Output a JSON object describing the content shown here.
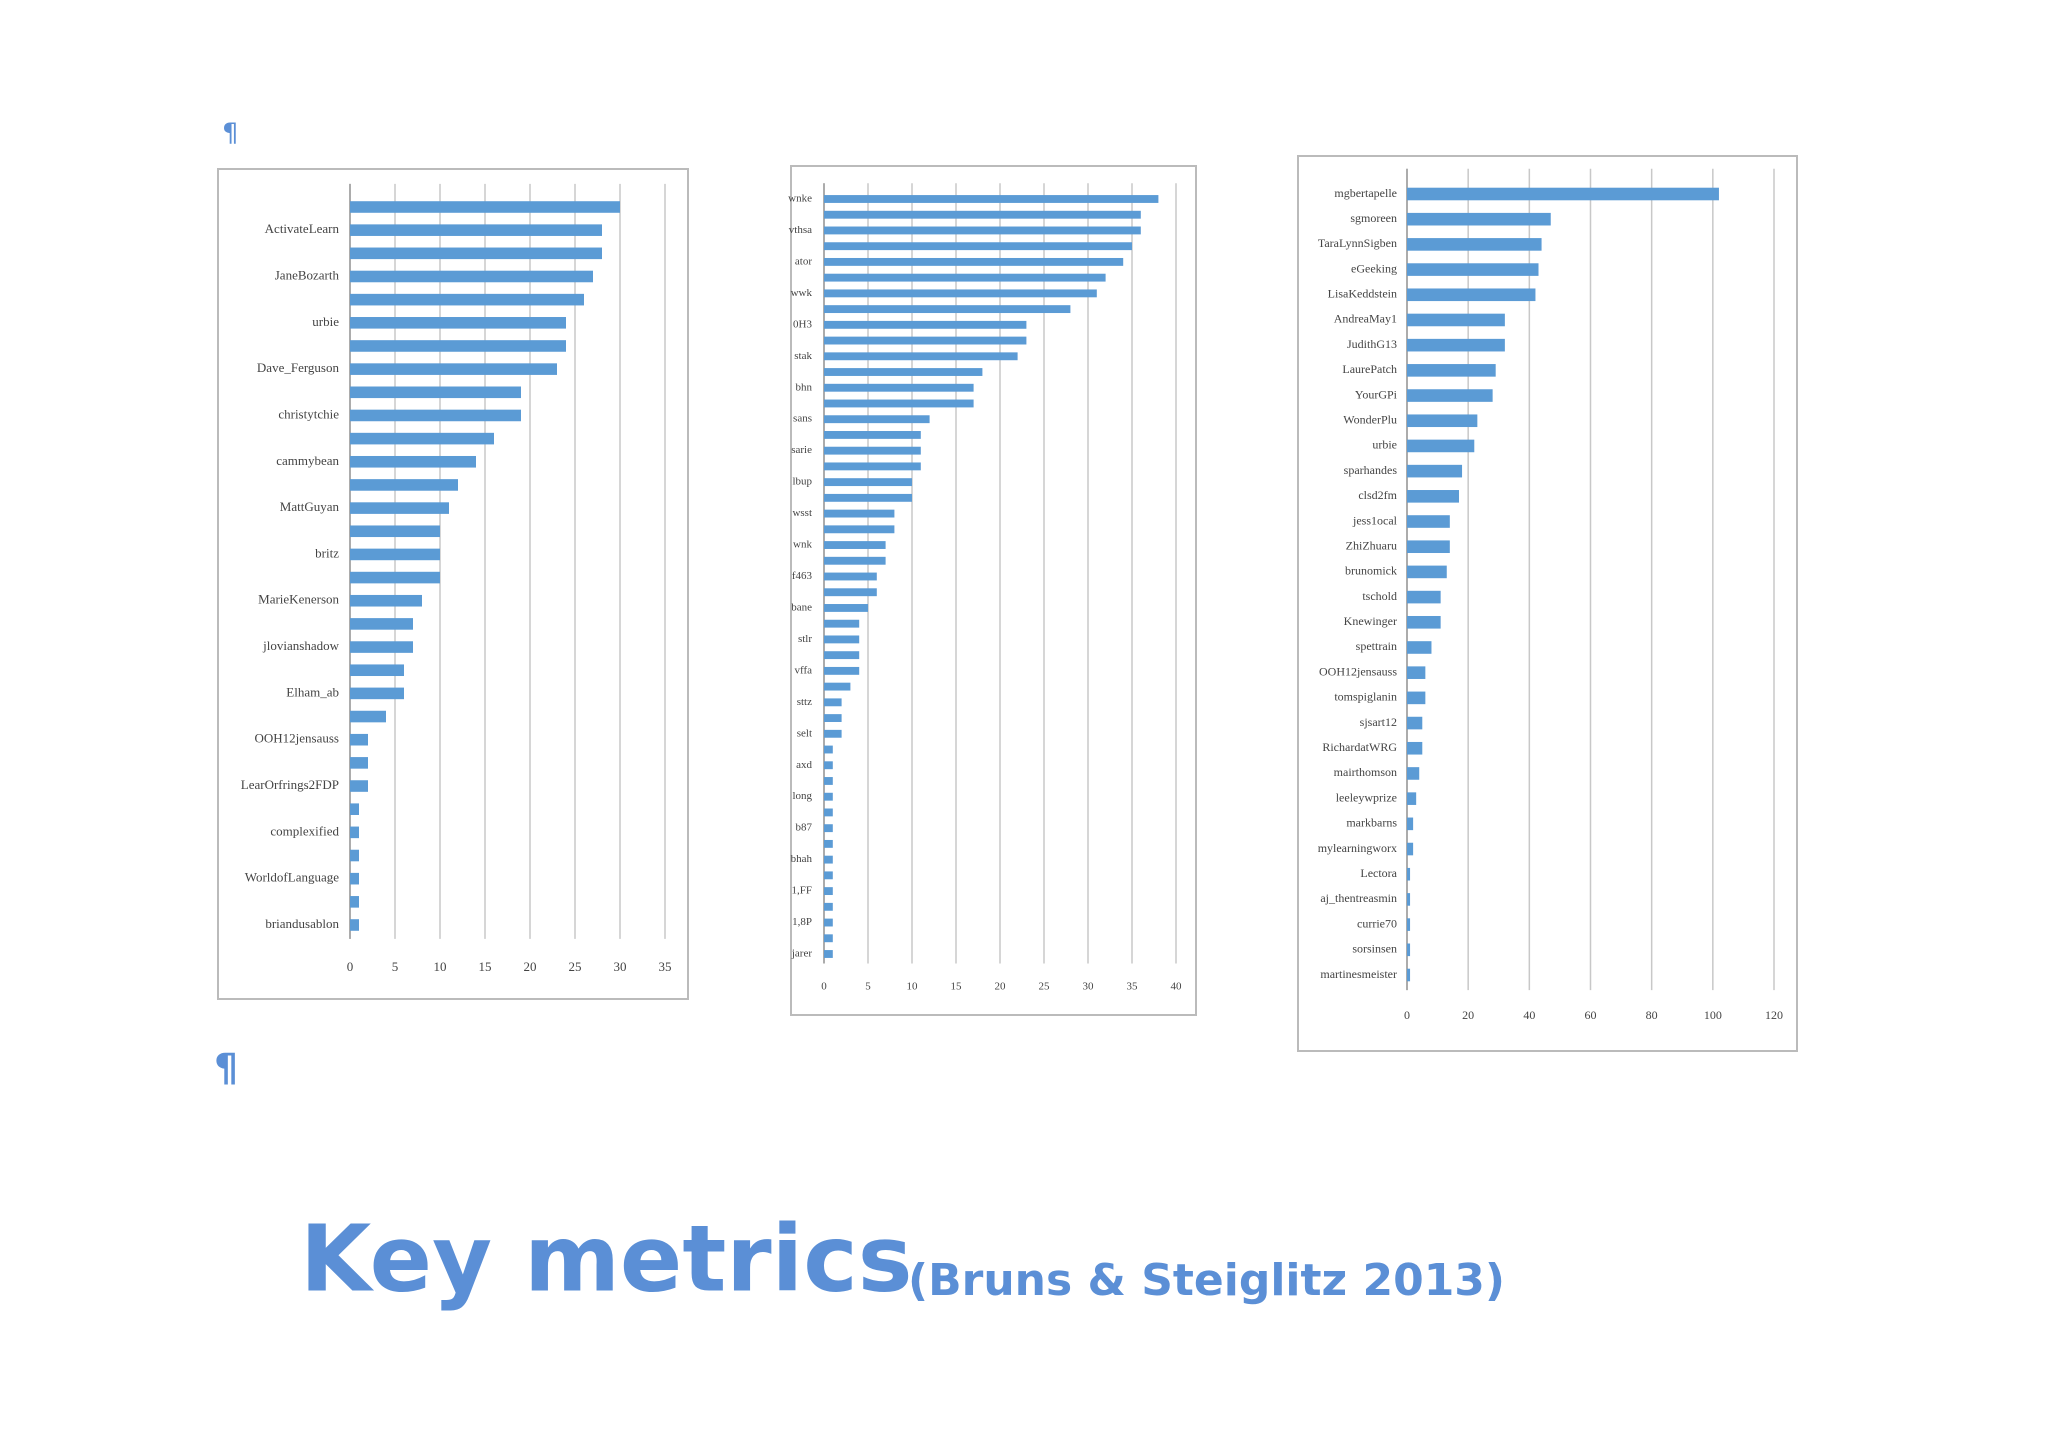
{
  "marks": [
    "¶",
    "¶"
  ],
  "heading": {
    "title": "Key metrics",
    "citation": "(Bruns & Steiglitz 2013)"
  },
  "chart_data": [
    {
      "type": "bar",
      "orientation": "horizontal",
      "color": "#5b9bd5",
      "grid": true,
      "categories": [
        null,
        "ActivateLearn",
        null,
        "JaneBozarth",
        null,
        "urbie",
        null,
        "Dave_Ferguson",
        null,
        "christytchie",
        null,
        "cammybean",
        null,
        "MattGuyan",
        null,
        "britz",
        null,
        "MarieKenerson",
        null,
        "jlovianshadow",
        null,
        "Elham_ab",
        null,
        "OOH12jensauss",
        null,
        "LearOrfrings2FDP",
        null,
        "complexified",
        null,
        "WorldofLanguage",
        null,
        "briandusablon"
      ],
      "values": [
        30,
        28,
        28,
        27,
        26,
        24,
        24,
        23,
        19,
        19,
        16,
        14,
        12,
        11,
        10,
        10,
        10,
        8,
        7,
        7,
        6,
        6,
        4,
        2,
        2,
        2,
        1,
        1,
        1,
        1,
        1,
        1
      ],
      "xlim": [
        0,
        35
      ],
      "xticks": [
        0,
        5,
        10,
        15,
        20,
        25,
        30,
        35
      ]
    },
    {
      "type": "bar",
      "orientation": "horizontal",
      "color": "#5b9bd5",
      "grid": true,
      "categories": [
        "wnke",
        null,
        "vthsa",
        null,
        "ator",
        null,
        "wwk",
        null,
        "0H3",
        null,
        "stak",
        null,
        "bhn",
        null,
        "sans",
        null,
        "sarie",
        null,
        "lbup",
        null,
        "wsst",
        null,
        "wnk",
        null,
        "f463",
        null,
        "bane",
        null,
        "stlr",
        null,
        "vffa",
        null,
        "sttz",
        null,
        "selt",
        null,
        "axd",
        null,
        "long",
        null,
        "b87",
        null,
        "bhah",
        null,
        "1,FF",
        null,
        "1,8P",
        null,
        "jarer"
      ],
      "values": [
        38,
        36,
        36,
        35,
        34,
        32,
        31,
        28,
        23,
        23,
        22,
        18,
        17,
        17,
        12,
        11,
        11,
        11,
        10,
        10,
        8,
        8,
        7,
        7,
        6,
        6,
        5,
        4,
        4,
        4,
        4,
        3,
        2,
        2,
        2,
        1,
        1,
        1,
        1,
        1,
        1,
        1,
        1,
        1,
        1,
        1,
        1,
        1,
        1
      ],
      "xlim": [
        0,
        40
      ],
      "xticks": [
        0,
        5,
        10,
        15,
        20,
        25,
        30,
        35,
        40
      ]
    },
    {
      "type": "bar",
      "orientation": "horizontal",
      "color": "#5b9bd5",
      "grid": true,
      "categories": [
        "mgbertapelle",
        "sgmoreen",
        "TaraLynnSigben",
        "eGeeking",
        "LisaKeddstein",
        "AndreaMay1",
        "JudithG13",
        "LaurePatch",
        "YourGPi",
        "WonderPlu",
        "urbie",
        "sparhandes",
        "clsd2fm",
        "jess1ocal",
        "ZhiZhuaru",
        "brunomick",
        "tschold",
        "Knewinger",
        "spettrain",
        "OOH12jensauss",
        "tomspiglanin",
        "sjsart12",
        "RichardatWRG",
        "mairthomson",
        "leeleywprize",
        "markbarns",
        "mylearningworx",
        "Lectora",
        "aj_thentreasmin",
        "currie70",
        "sorsinsen",
        "martinesmeister"
      ],
      "values": [
        102,
        47,
        44,
        43,
        42,
        32,
        32,
        29,
        28,
        23,
        22,
        18,
        17,
        14,
        14,
        13,
        11,
        11,
        8,
        6,
        6,
        5,
        5,
        4,
        3,
        2,
        2,
        1,
        1,
        1,
        1,
        1
      ],
      "xlim": [
        0,
        120
      ],
      "xticks": [
        0,
        20,
        40,
        60,
        80,
        100,
        120
      ]
    }
  ]
}
